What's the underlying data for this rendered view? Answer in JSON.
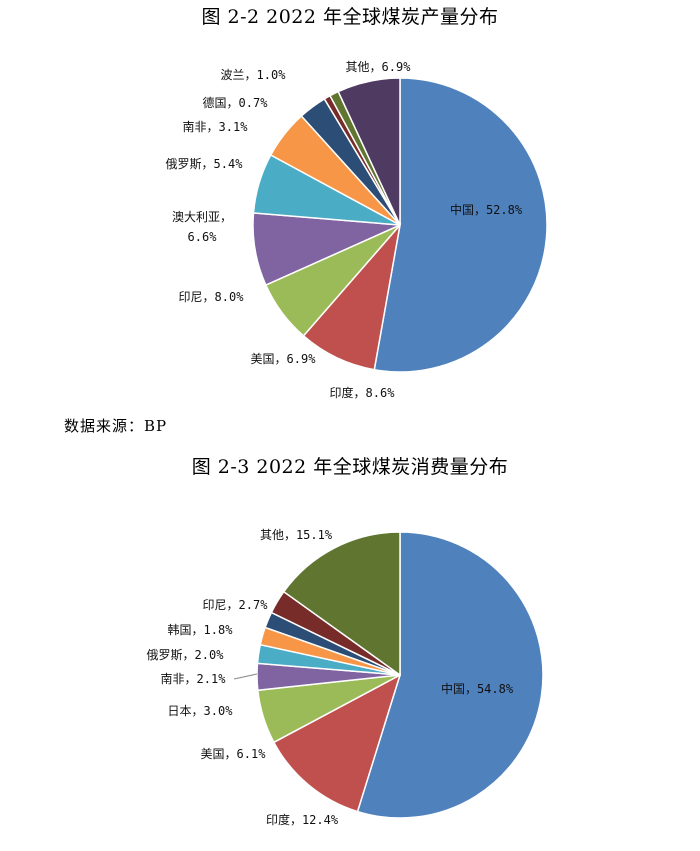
{
  "source": "数据来源：BP",
  "chart_data": [
    {
      "type": "pie",
      "title": "图 2-2 2022 年全球煤炭产量分布",
      "categories": [
        "中国",
        "印度",
        "美国",
        "印尼",
        "澳大利亚",
        "俄罗斯",
        "南非",
        "德国",
        "波兰",
        "其他"
      ],
      "values": [
        52.8,
        8.6,
        6.9,
        8.0,
        6.6,
        5.4,
        3.1,
        0.7,
        1.0,
        6.9
      ],
      "labels": [
        "中国，52.8%",
        "印度，8.6%",
        "美国，6.9%",
        "印尼，8.0%",
        "澳大利亚，\n6.6%",
        "俄罗斯，5.4%",
        "南非，3.1%",
        "德国，0.7%",
        "波兰，1.0%",
        "其他，6.9%"
      ],
      "colors": [
        "#4f81bd",
        "#c0504d",
        "#9bbb59",
        "#8064a2",
        "#4bacc6",
        "#f79646",
        "#2c4d75",
        "#772c2a",
        "#5f7530",
        "#4f3a62"
      ]
    },
    {
      "type": "pie",
      "title": "图 2-3 2022 年全球煤炭消费量分布",
      "categories": [
        "中国",
        "印度",
        "美国",
        "日本",
        "南非",
        "俄罗斯",
        "韩国",
        "印尼",
        "其他"
      ],
      "values": [
        54.8,
        12.4,
        6.1,
        3.0,
        2.1,
        2.0,
        1.8,
        2.7,
        15.1
      ],
      "labels": [
        "中国，54.8%",
        "印度，12.4%",
        "美国，6.1%",
        "日本，3.0%",
        "南非，2.1%",
        "俄罗斯，2.0%",
        "韩国，1.8%",
        "印尼，2.7%",
        "其他，15.1%"
      ],
      "colors": [
        "#4f81bd",
        "#c0504d",
        "#9bbb59",
        "#8064a2",
        "#4bacc6",
        "#f79646",
        "#2c4d75",
        "#772c2a",
        "#5f7530"
      ]
    }
  ]
}
